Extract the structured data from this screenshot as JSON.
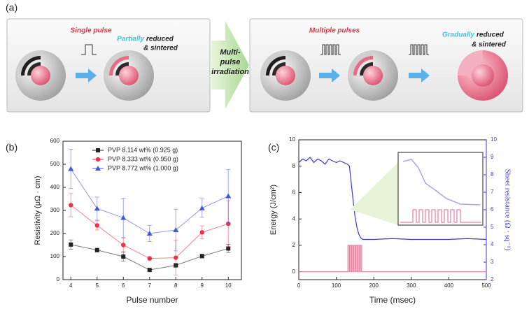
{
  "panel_a": {
    "label": "(a)",
    "single_pulse": "Single pulse",
    "partially": "Partially",
    "reduced": "reduced",
    "sintered": "& sintered",
    "multi_pulse": [
      "Multi-",
      "pulse",
      "irradiation"
    ],
    "multiple_pulses": "Multiple pulses",
    "gradually": "Gradually",
    "reduced_2": "reduced",
    "sintered_2": "& sintered"
  },
  "chart_data": [
    {
      "type": "line",
      "label": "(b)",
      "xlabel": "Pulse number",
      "ylabel": "Resistivity (μΩ · cm)",
      "x": [
        4,
        5,
        6,
        7,
        8,
        9,
        10
      ],
      "xlim": [
        3.7,
        10.5
      ],
      "xticks": [
        4,
        5,
        6,
        7,
        8,
        9,
        10
      ],
      "ylim": [
        0,
        600
      ],
      "yticks": [
        0,
        100,
        200,
        300,
        400,
        500,
        600
      ],
      "legend": "upper center",
      "series": [
        {
          "name": "PVP 8.114 wt% (0.925 g)",
          "color": "#222222",
          "marker": "square",
          "values": [
            152,
            128,
            100,
            42,
            62,
            102,
            135
          ],
          "errors": [
            20,
            8,
            20,
            5,
            8,
            8,
            18
          ]
        },
        {
          "name": "PVP 8.333 wt% (0.950 g)",
          "color": "#e8334a",
          "marker": "circle",
          "values": [
            323,
            235,
            150,
            92,
            95,
            205,
            242
          ],
          "errors": [
            50,
            20,
            30,
            8,
            75,
            28,
            100
          ]
        },
        {
          "name": "PVP 8.772 wt% (1.000 g)",
          "color": "#4455dd",
          "marker": "triangle",
          "values": [
            480,
            308,
            268,
            200,
            215,
            310,
            362
          ],
          "errors": [
            85,
            50,
            85,
            35,
            90,
            40,
            115
          ]
        }
      ]
    },
    {
      "type": "line",
      "label": "(c)",
      "xlabel": "Time (msec)",
      "ylabel": "Energy (J/cm²)",
      "y2label": "Sheet resistance (Ω · sq⁻¹)",
      "xlim": [
        0,
        500
      ],
      "xticks": [
        0,
        100,
        200,
        300,
        400,
        500
      ],
      "ylim": [
        -0.6,
        10
      ],
      "yticks": [
        0,
        2,
        4,
        6,
        8,
        10
      ],
      "y2lim": [
        2,
        10
      ],
      "y2ticks": [
        2,
        3,
        4,
        5,
        6,
        7,
        8,
        9,
        10
      ],
      "series": [
        {
          "color": "#e87fa0",
          "x": [
            0,
            131,
            131,
            134.5,
            134.5,
            136.5,
            136.5,
            140,
            140,
            142,
            142,
            145.5,
            145.5,
            147.5,
            147.5,
            151,
            151,
            153,
            153,
            156.5,
            156.5,
            158.5,
            158.5,
            162,
            162,
            164,
            164,
            167.5,
            167.5,
            500
          ],
          "values": [
            0,
            0,
            2,
            2,
            0,
            0,
            2,
            2,
            0,
            0,
            2,
            2,
            0,
            0,
            2,
            2,
            0,
            0,
            2,
            2,
            0,
            0,
            2,
            2,
            0,
            0,
            2,
            2,
            0,
            0
          ]
        },
        {
          "color": "#3a3ad0",
          "axis": "y2",
          "x": [
            0,
            10,
            20,
            30,
            40,
            50,
            60,
            70,
            80,
            90,
            100,
            110,
            120,
            130,
            135,
            140,
            145,
            150,
            155,
            160,
            165,
            170,
            180,
            200,
            250,
            300,
            350,
            400,
            450,
            500
          ],
          "values": [
            8.7,
            8.9,
            8.8,
            9.0,
            8.7,
            8.9,
            8.8,
            8.6,
            8.9,
            8.8,
            8.7,
            8.8,
            8.7,
            8.6,
            8.5,
            7.5,
            6.5,
            5.6,
            5.0,
            4.6,
            4.4,
            4.3,
            4.3,
            4.3,
            4.35,
            4.3,
            4.3,
            4.3,
            4.35,
            4.3
          ]
        }
      ]
    }
  ]
}
